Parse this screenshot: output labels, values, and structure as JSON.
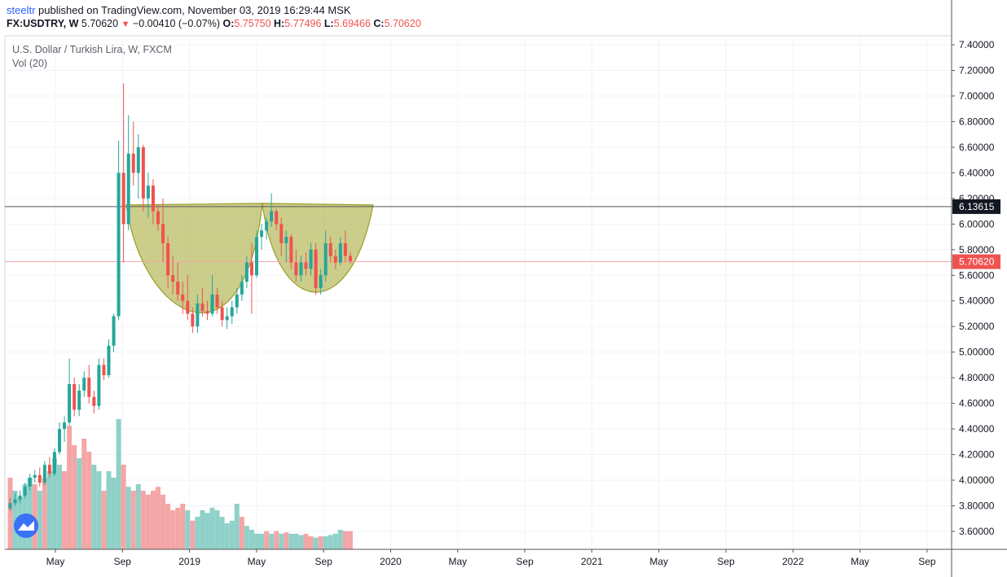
{
  "header": {
    "author": "steeltr",
    "published_text": "published on TradingView.com, November 03, 2019 16:29:44 MSK",
    "symbol": "FX:USDTRY, W",
    "last_price": "5.70620",
    "change": "−0.00410 (−0.07%)",
    "open_label": "O:",
    "open": "5.75750",
    "high_label": "H:",
    "high": "5.77496",
    "low_label": "L:",
    "low": "5.69466",
    "close_label": "C:",
    "close": "5.70620"
  },
  "legend": {
    "instrument": "U.S. Dollar / Turkish Lira, W, FXCM",
    "volume": "Vol (20)"
  },
  "colors": {
    "up": "#26a69a",
    "down": "#ef5350",
    "vol_up": "#8fd1c9",
    "vol_down": "#f4a6a6",
    "cup_fill": "#a8ac3c",
    "cup_stroke": "#9a9e2a",
    "hline": "#555555",
    "price_line": "#f4a6a6"
  },
  "chart_data": {
    "type": "candlestick",
    "timeframe": "W",
    "y_ticks": [
      "7.40000",
      "7.20000",
      "7.00000",
      "6.80000",
      "6.60000",
      "6.40000",
      "6.20000",
      "6.00000",
      "5.80000",
      "5.60000",
      "5.40000",
      "5.20000",
      "5.00000",
      "4.80000",
      "4.60000",
      "4.40000",
      "4.20000",
      "4.00000",
      "3.80000",
      "3.60000"
    ],
    "ylim": [
      3.46,
      7.47
    ],
    "x_ticks": [
      "May",
      "Sep",
      "2019",
      "May",
      "Sep",
      "2020",
      "May",
      "Sep",
      "2021",
      "May",
      "Sep",
      "2022",
      "May",
      "Sep"
    ],
    "horizontal_line": {
      "value": 6.13615,
      "label": "6.13615"
    },
    "last_price_line": {
      "value": 5.7062,
      "label": "5.70620"
    },
    "pattern": "cup-and-handle",
    "candles_ohlc": [
      [
        3.78,
        3.86,
        3.76,
        3.82
      ],
      [
        3.82,
        3.9,
        3.8,
        3.85
      ],
      [
        3.85,
        3.92,
        3.82,
        3.88
      ],
      [
        3.88,
        3.98,
        3.86,
        3.95
      ],
      [
        3.95,
        4.05,
        3.92,
        4.02
      ],
      [
        4.02,
        4.08,
        3.98,
        4.04
      ],
      [
        4.04,
        4.1,
        3.95,
        3.98
      ],
      [
        3.98,
        4.15,
        3.96,
        4.12
      ],
      [
        4.12,
        4.18,
        4.02,
        4.05
      ],
      [
        4.05,
        4.25,
        4.03,
        4.22
      ],
      [
        4.22,
        4.45,
        4.2,
        4.4
      ],
      [
        4.4,
        4.5,
        4.3,
        4.45
      ],
      [
        4.45,
        4.95,
        4.43,
        4.75
      ],
      [
        4.75,
        4.8,
        4.5,
        4.55
      ],
      [
        4.55,
        4.75,
        4.5,
        4.7
      ],
      [
        4.7,
        4.85,
        4.65,
        4.8
      ],
      [
        4.8,
        4.9,
        4.6,
        4.65
      ],
      [
        4.65,
        4.7,
        4.52,
        4.58
      ],
      [
        4.58,
        4.95,
        4.55,
        4.9
      ],
      [
        4.9,
        4.95,
        4.78,
        4.82
      ],
      [
        4.82,
        5.1,
        4.8,
        5.05
      ],
      [
        5.05,
        5.3,
        5.0,
        5.28
      ],
      [
        5.28,
        6.65,
        5.25,
        6.4
      ],
      [
        6.4,
        7.1,
        5.7,
        6.0
      ],
      [
        6.0,
        6.85,
        5.95,
        6.55
      ],
      [
        6.55,
        6.8,
        6.3,
        6.4
      ],
      [
        6.4,
        6.7,
        6.2,
        6.6
      ],
      [
        6.6,
        6.62,
        6.1,
        6.2
      ],
      [
        6.2,
        6.4,
        6.05,
        6.3
      ],
      [
        6.3,
        6.35,
        6.0,
        6.1
      ],
      [
        6.1,
        6.15,
        5.95,
        6.0
      ],
      [
        6.0,
        6.2,
        5.7,
        5.85
      ],
      [
        5.85,
        5.9,
        5.5,
        5.6
      ],
      [
        5.6,
        5.75,
        5.45,
        5.55
      ],
      [
        5.55,
        5.7,
        5.4,
        5.45
      ],
      [
        5.45,
        5.55,
        5.3,
        5.4
      ],
      [
        5.4,
        5.6,
        5.25,
        5.3
      ],
      [
        5.3,
        5.35,
        5.15,
        5.2
      ],
      [
        5.2,
        5.45,
        5.15,
        5.38
      ],
      [
        5.38,
        5.5,
        5.28,
        5.32
      ],
      [
        5.32,
        5.4,
        5.25,
        5.3
      ],
      [
        5.3,
        5.6,
        5.28,
        5.45
      ],
      [
        5.45,
        5.5,
        5.3,
        5.35
      ],
      [
        5.35,
        5.4,
        5.2,
        5.25
      ],
      [
        5.25,
        5.35,
        5.18,
        5.28
      ],
      [
        5.28,
        5.4,
        5.22,
        5.35
      ],
      [
        5.35,
        5.5,
        5.3,
        5.45
      ],
      [
        5.45,
        5.6,
        5.4,
        5.55
      ],
      [
        5.55,
        5.75,
        5.5,
        5.7
      ],
      [
        5.7,
        5.85,
        5.3,
        5.6
      ],
      [
        5.6,
        5.95,
        5.58,
        5.9
      ],
      [
        5.9,
        6.0,
        5.8,
        5.95
      ],
      [
        5.95,
        6.05,
        5.88,
        6.02
      ],
      [
        6.02,
        6.24,
        5.98,
        6.1
      ],
      [
        6.1,
        6.12,
        5.95,
        6.0
      ],
      [
        6.0,
        6.05,
        5.75,
        5.85
      ],
      [
        5.85,
        5.95,
        5.7,
        5.9
      ],
      [
        5.9,
        5.92,
        5.65,
        5.7
      ],
      [
        5.7,
        5.8,
        5.55,
        5.6
      ],
      [
        5.6,
        5.75,
        5.55,
        5.7
      ],
      [
        5.7,
        5.78,
        5.6,
        5.65
      ],
      [
        5.65,
        5.85,
        5.6,
        5.8
      ],
      [
        5.8,
        5.85,
        5.45,
        5.5
      ],
      [
        5.5,
        5.65,
        5.45,
        5.6
      ],
      [
        5.6,
        5.95,
        5.55,
        5.85
      ],
      [
        5.85,
        5.9,
        5.7,
        5.75
      ],
      [
        5.75,
        5.8,
        5.65,
        5.7
      ],
      [
        5.7,
        5.9,
        5.68,
        5.85
      ],
      [
        5.85,
        5.95,
        5.7,
        5.75
      ],
      [
        5.75,
        5.78,
        5.69,
        5.71
      ]
    ],
    "volume_bars": [
      [
        0.55,
        0
      ],
      [
        0.45,
        1
      ],
      [
        0.4,
        1
      ],
      [
        0.5,
        1
      ],
      [
        0.55,
        1
      ],
      [
        0.5,
        0
      ],
      [
        0.45,
        1
      ],
      [
        0.55,
        0
      ],
      [
        0.6,
        1
      ],
      [
        0.7,
        1
      ],
      [
        0.65,
        1
      ],
      [
        0.6,
        0
      ],
      [
        0.95,
        0
      ],
      [
        0.8,
        0
      ],
      [
        0.7,
        1
      ],
      [
        0.85,
        0
      ],
      [
        0.75,
        0
      ],
      [
        0.65,
        1
      ],
      [
        0.6,
        1
      ],
      [
        0.45,
        0
      ],
      [
        0.6,
        1
      ],
      [
        0.55,
        1
      ],
      [
        1.0,
        1
      ],
      [
        0.65,
        0
      ],
      [
        0.48,
        1
      ],
      [
        0.45,
        0
      ],
      [
        0.5,
        1
      ],
      [
        0.45,
        0
      ],
      [
        0.42,
        0
      ],
      [
        0.45,
        0
      ],
      [
        0.48,
        0
      ],
      [
        0.42,
        0
      ],
      [
        0.35,
        0
      ],
      [
        0.3,
        0
      ],
      [
        0.32,
        0
      ],
      [
        0.35,
        0
      ],
      [
        0.3,
        1
      ],
      [
        0.22,
        0
      ],
      [
        0.25,
        1
      ],
      [
        0.3,
        1
      ],
      [
        0.28,
        1
      ],
      [
        0.32,
        1
      ],
      [
        0.3,
        1
      ],
      [
        0.25,
        1
      ],
      [
        0.2,
        1
      ],
      [
        0.22,
        1
      ],
      [
        0.35,
        1
      ],
      [
        0.25,
        0
      ],
      [
        0.18,
        1
      ],
      [
        0.15,
        1
      ],
      [
        0.12,
        1
      ],
      [
        0.12,
        1
      ],
      [
        0.14,
        0
      ],
      [
        0.12,
        1
      ],
      [
        0.14,
        0
      ],
      [
        0.12,
        1
      ],
      [
        0.13,
        0
      ],
      [
        0.12,
        1
      ],
      [
        0.12,
        1
      ],
      [
        0.11,
        1
      ],
      [
        0.12,
        0
      ],
      [
        0.1,
        0
      ],
      [
        0.09,
        1
      ],
      [
        0.1,
        0
      ],
      [
        0.1,
        1
      ],
      [
        0.11,
        1
      ],
      [
        0.12,
        1
      ],
      [
        0.15,
        1
      ],
      [
        0.14,
        0
      ],
      [
        0.14,
        0
      ]
    ]
  }
}
